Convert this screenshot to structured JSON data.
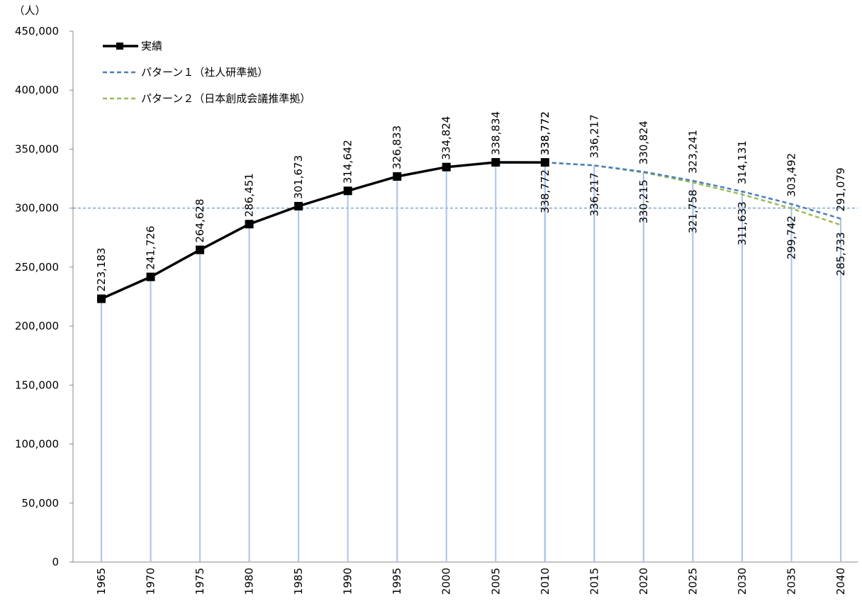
{
  "chart_data": {
    "type": "line",
    "y_unit": "（人）",
    "categories": [
      "1965",
      "1970",
      "1975",
      "1980",
      "1985",
      "1990",
      "1995",
      "2000",
      "2005",
      "2010",
      "2015",
      "2020",
      "2025",
      "2030",
      "2035",
      "2040"
    ],
    "series": [
      {
        "name": "実績",
        "color": "#000000",
        "dash": false,
        "marker": "square",
        "label_side": "above",
        "values": [
          223183,
          241726,
          264628,
          286451,
          301673,
          314642,
          326833,
          334824,
          338834,
          338772,
          null,
          null,
          null,
          null,
          null,
          null
        ],
        "value_labels": [
          "223,183",
          "241,726",
          "264,628",
          "286,451",
          "301,673",
          "314,642",
          "326,833",
          "334,824",
          "338,834",
          "338,772",
          null,
          null,
          null,
          null,
          null,
          null
        ]
      },
      {
        "name": "パターン１（社人研準拠）",
        "color": "#4a7ebb",
        "dash": true,
        "label_side": "above",
        "values": [
          null,
          null,
          null,
          null,
          null,
          null,
          null,
          null,
          null,
          338772,
          336217,
          330824,
          323241,
          314131,
          303492,
          291079
        ],
        "value_labels": [
          null,
          null,
          null,
          null,
          null,
          null,
          null,
          null,
          null,
          "338,772",
          "336,217",
          "330,824",
          "323,241",
          "314,131",
          "303,492",
          "291,079"
        ]
      },
      {
        "name": "パターン２（日本創成会議推準拠）",
        "color": "#9bbb59",
        "dash": true,
        "label_side": "below",
        "values": [
          null,
          null,
          null,
          null,
          null,
          null,
          null,
          null,
          null,
          338772,
          336217,
          330215,
          321758,
          311633,
          299742,
          285733
        ],
        "value_labels": [
          null,
          null,
          null,
          null,
          null,
          null,
          null,
          null,
          null,
          "338,772",
          "336,217",
          "330,215",
          "321,758",
          "311,633",
          "299,742",
          "285,733"
        ]
      }
    ],
    "ylim": [
      0,
      450000
    ],
    "yticks": [
      0,
      {
        "value": 50000,
        "label": "50,000"
      },
      {
        "value": 100000,
        "label": "100,000"
      },
      {
        "value": 150000,
        "label": "150,000"
      },
      {
        "value": 200000,
        "label": "200,000"
      },
      {
        "value": 250000,
        "label": "250,000"
      },
      {
        "value": 300000,
        "label": "300,000"
      },
      {
        "value": 350000,
        "label": "350,000"
      },
      {
        "value": 400000,
        "label": "400,000"
      },
      {
        "value": 450000,
        "label": "450,000"
      }
    ],
    "reference_line": 300000,
    "drop_lines": true,
    "legend": "top-left"
  }
}
